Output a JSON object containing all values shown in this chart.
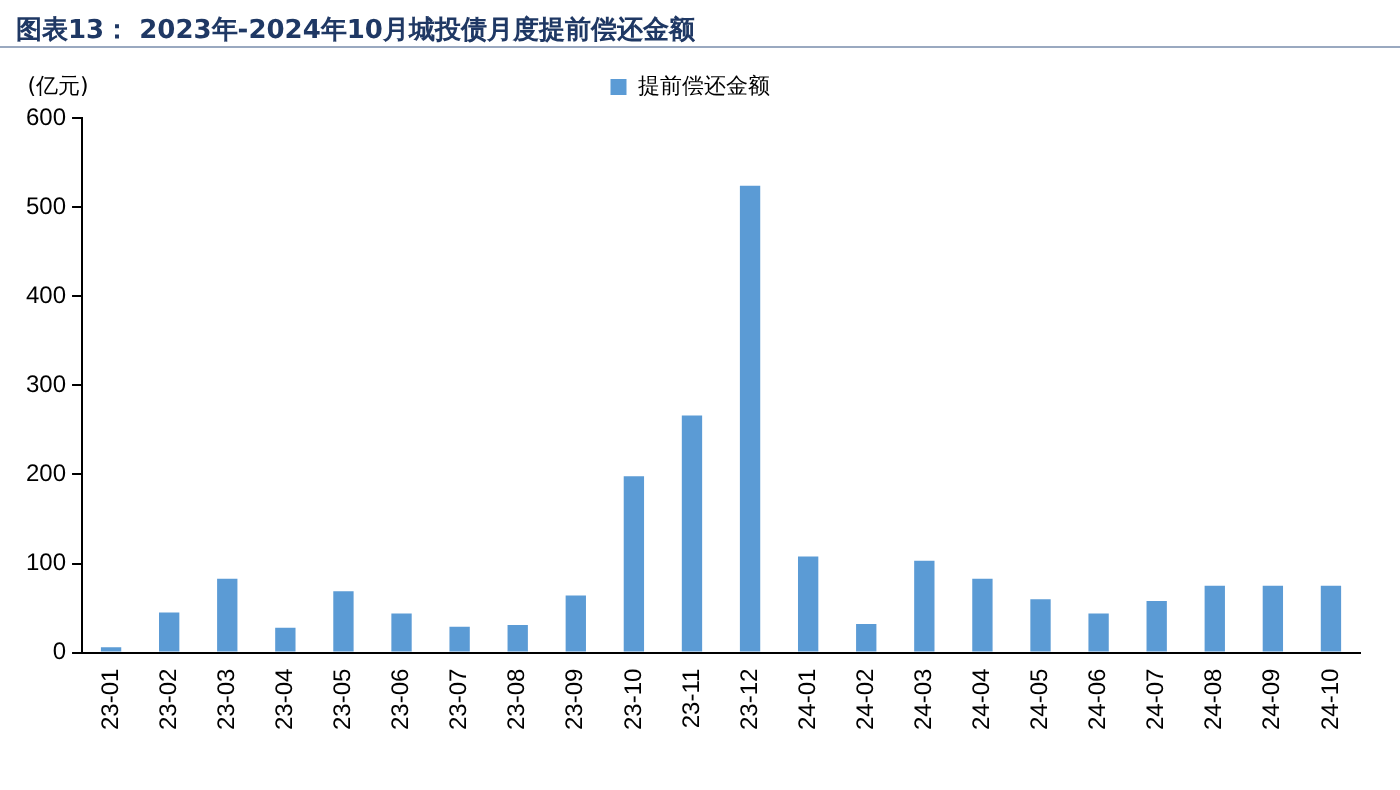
{
  "chart_data": {
    "type": "bar",
    "title": "图表13： 2023年-2024年10月城投债月度提前偿还金额",
    "ylabel": "(亿元)",
    "categories": [
      "23-01",
      "23-02",
      "23-03",
      "23-04",
      "23-05",
      "23-06",
      "23-07",
      "23-08",
      "23-09",
      "23-10",
      "23-11",
      "23-12",
      "24-01",
      "24-02",
      "24-03",
      "24-04",
      "24-05",
      "24-06",
      "24-07",
      "24-08",
      "24-09",
      "24-10"
    ],
    "series": [
      {
        "name": "提前偿还金额",
        "color": "#5b9bd5",
        "values": [
          6,
          45,
          83,
          28,
          69,
          44,
          29,
          31,
          64,
          198,
          266,
          524,
          108,
          32,
          103,
          83,
          60,
          44,
          58,
          75,
          75,
          75
        ]
      }
    ],
    "ylim": [
      0,
      600
    ],
    "yticks": [
      0,
      100,
      200,
      300,
      400,
      500,
      600
    ],
    "grid": false,
    "legend": "top"
  }
}
